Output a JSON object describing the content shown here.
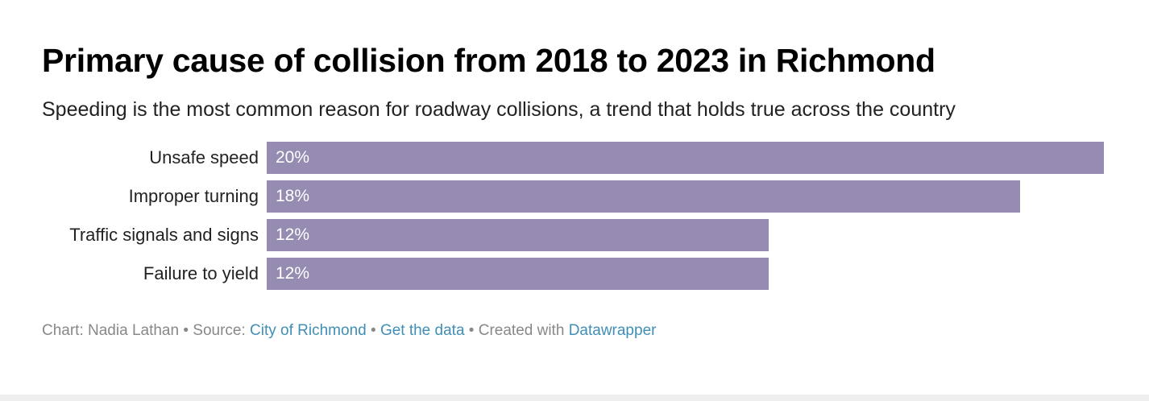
{
  "chart_data": {
    "type": "bar",
    "orientation": "horizontal",
    "title": "Primary cause of collision from 2018 to 2023 in Richmond",
    "subtitle": "Speeding is the most common reason for roadway collisions, a trend that holds true across the country",
    "categories": [
      "Unsafe speed",
      "Improper turning",
      "Traffic signals and signs",
      "Failure to yield"
    ],
    "values": [
      20,
      18,
      12,
      12
    ],
    "value_labels": [
      "20%",
      "18%",
      "12%",
      "12%"
    ],
    "xlim": [
      0,
      20
    ],
    "grid": false,
    "color": "#968bb0"
  },
  "footer": {
    "chart_by": "Chart: Nadia Lathan",
    "sep1": " • ",
    "source_prefix": "Source: ",
    "source_link": "City of Richmond",
    "sep2": " • ",
    "get_data": "Get the data",
    "sep3": " • ",
    "created_prefix": "Created with ",
    "created_link": "Datawrapper"
  },
  "colors": {
    "bar": "#968bb0",
    "link": "#3f8fb7",
    "footer_text": "#888888"
  }
}
